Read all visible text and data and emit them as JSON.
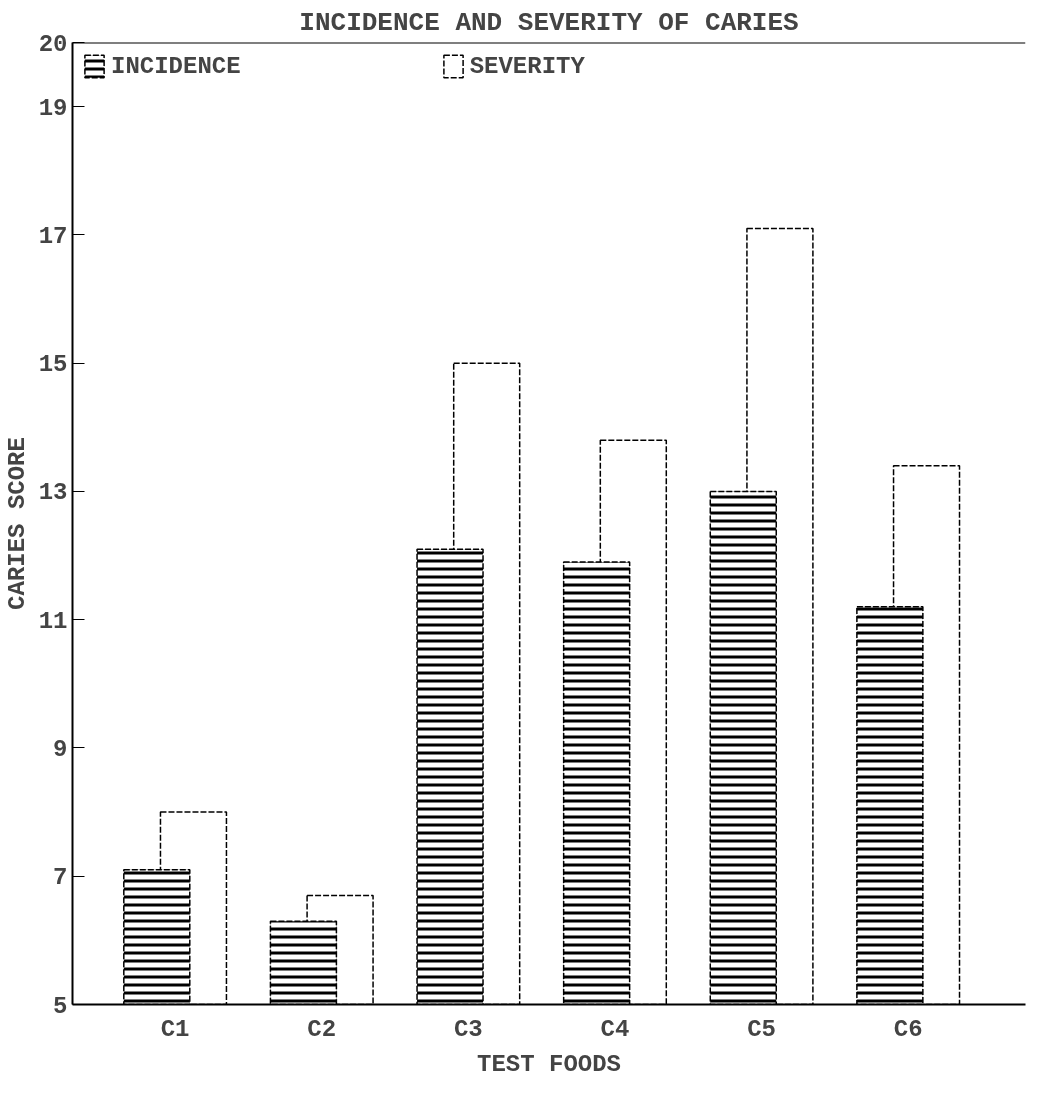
{
  "chart_data": {
    "type": "bar",
    "title": "INCIDENCE AND SEVERITY OF CARIES",
    "xlabel": "TEST FOODS",
    "ylabel": "CARIES SCORE",
    "categories": [
      "C1",
      "C2",
      "C3",
      "C4",
      "C5",
      "C6"
    ],
    "series": [
      {
        "name": "INCIDENCE",
        "color": "#000000",
        "values": [
          7.1,
          6.3,
          12.1,
          11.9,
          13.0,
          11.2
        ]
      },
      {
        "name": "SEVERITY",
        "color": "#ffffff",
        "values": [
          8.0,
          6.7,
          15.0,
          13.8,
          17.1,
          13.4
        ]
      }
    ],
    "ylim": [
      5,
      20
    ],
    "yticks": [
      5,
      7,
      9,
      11,
      13,
      15,
      17,
      19,
      20
    ],
    "grid": false,
    "legend": "top left"
  }
}
